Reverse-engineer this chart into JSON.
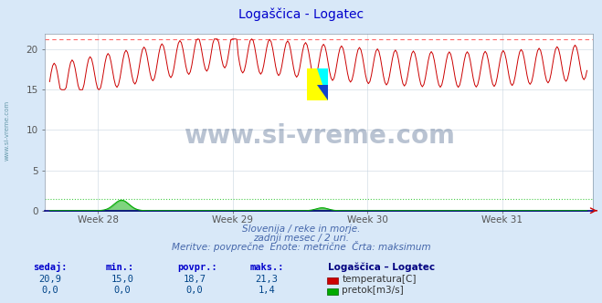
{
  "title": "Logaščica - Logatec",
  "title_color": "#0000cc",
  "bg_color": "#d8e8f8",
  "plot_bg_color": "#ffffff",
  "grid_color": "#c8d4e0",
  "x_labels": [
    "Week 28",
    "Week 29",
    "Week 30",
    "Week 31"
  ],
  "x_label_color": "#555555",
  "ylim": [
    0,
    22
  ],
  "yticks": [
    0,
    5,
    10,
    15,
    20
  ],
  "temp_color": "#cc0000",
  "temp_max_line_color": "#ff6666",
  "flow_color": "#00aa00",
  "flow_max_line_color": "#44cc44",
  "temp_min": 15.0,
  "temp_max": 21.3,
  "temp_avg": 18.7,
  "flow_min": 0.0,
  "flow_max": 1.4,
  "flow_avg": 0.0,
  "n_points": 360,
  "watermark": "www.si-vreme.com",
  "watermark_color": "#1a3a6a",
  "subtitle1": "Slovenija / reke in morje.",
  "subtitle2": "zadnji mesec / 2 uri.",
  "subtitle3": "Meritve: povprečne  Enote: metrične  Črta: maksimum",
  "subtitle_color": "#4466aa",
  "legend_title": "Logaščica – Logatec",
  "legend_title_color": "#000080",
  "table_header_color": "#0000cc",
  "table_value_color": "#004488",
  "left_label": "www.si-vreme.com",
  "left_label_color": "#6699aa",
  "axis_color": "#000080",
  "spine_color": "#8899aa"
}
